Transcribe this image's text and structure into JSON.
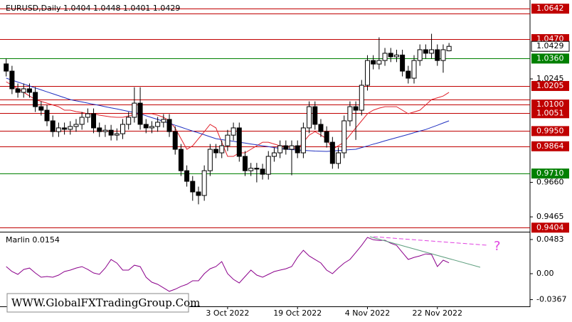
{
  "chart_data": {
    "type": "candlestick",
    "title": "EURUSD,Daily  1.0404 1.0448 1.0401 1.0429",
    "watermark": "WWW.GlobalFXTradingGroup.Com",
    "categories": [
      null,
      null,
      null,
      null,
      null,
      null,
      null,
      null,
      null,
      null,
      null,
      null,
      null,
      null,
      null,
      null,
      null,
      null,
      null,
      null,
      null,
      null,
      null,
      null,
      null,
      null,
      null,
      null,
      null,
      null,
      null,
      null,
      null,
      null,
      null,
      null,
      null,
      null,
      "3 Oct 2022",
      null,
      null,
      null,
      null,
      null,
      null,
      null,
      null,
      null,
      null,
      null,
      "19 Oct 2022",
      null,
      null,
      null,
      null,
      null,
      null,
      null,
      null,
      null,
      null,
      null,
      "4 Nov 2022",
      null,
      null,
      null,
      null,
      null,
      null,
      null,
      null,
      null,
      null,
      null,
      "22 Nov 2022",
      null,
      null
    ],
    "open": [
      1.033,
      1.0289,
      1.0189,
      1.0169,
      1.0189,
      1.0169,
      1.0088,
      1.0068,
      1.0008,
      0.9947,
      0.9968,
      0.996,
      0.9976,
      0.9988,
      1.0028,
      1.0048,
      0.9968,
      0.9947,
      0.9955,
      0.9927,
      0.9935,
      0.9988,
      1.0028,
      1.0108,
      0.9988,
      0.9968,
      0.9976,
      1.0,
      1.0016,
      0.9947,
      0.9847,
      0.9726,
      0.9666,
      0.9606,
      0.9586,
      0.9726,
      0.9847,
      0.9827,
      0.9867,
      0.9927,
      0.9968,
      0.9807,
      0.9726,
      0.974,
      0.9735,
      0.9706,
      0.9807,
      0.9827,
      0.9867,
      0.9847,
      0.9867,
      0.9827,
      0.9968,
      1.0088,
      0.9988,
      0.9947,
      0.9887,
      0.9767,
      0.9827,
      1.0008,
      1.0088,
      1.0068,
      1.0209,
      1.0349,
      1.0329,
      1.0349,
      1.039,
      1.037,
      1.038,
      1.0289,
      1.0249,
      1.0349,
      1.041,
      1.039,
      1.041,
      1.0349,
      1.0404
    ],
    "high": [
      1.036,
      1.0319,
      1.0219,
      1.0219,
      1.0219,
      1.0199,
      1.0118,
      1.0098,
      1.0038,
      0.9998,
      0.9998,
      1.0006,
      1.0018,
      1.0058,
      1.0078,
      1.0078,
      0.9998,
      0.9985,
      0.9985,
      0.9965,
      1.0018,
      1.0058,
      1.0198,
      1.0198,
      1.0018,
      1.0006,
      1.003,
      1.0046,
      1.0046,
      0.9977,
      0.9877,
      0.9756,
      0.9696,
      0.9636,
      0.9756,
      0.9877,
      0.9877,
      0.9897,
      0.9957,
      0.9998,
      0.9998,
      0.9837,
      0.977,
      0.977,
      0.9765,
      0.9837,
      0.9857,
      0.9897,
      0.9897,
      0.9897,
      0.9897,
      0.9998,
      1.0118,
      1.0118,
      1.0018,
      0.9977,
      0.9917,
      0.9857,
      1.0038,
      1.0118,
      1.0118,
      1.0239,
      1.0379,
      1.0379,
      1.048,
      1.042,
      1.042,
      1.041,
      1.041,
      1.0319,
      1.0379,
      1.044,
      1.044,
      1.05,
      1.044,
      1.044,
      1.0448
    ],
    "low": [
      1.0259,
      1.0159,
      1.0139,
      1.0139,
      1.0139,
      1.0058,
      1.0038,
      0.9978,
      0.9917,
      0.9917,
      0.993,
      0.993,
      0.9946,
      0.9958,
      0.9998,
      0.9938,
      0.9917,
      0.9917,
      0.9897,
      0.9897,
      0.9905,
      0.9958,
      0.9998,
      0.9958,
      0.9938,
      0.9938,
      0.9946,
      0.997,
      0.9917,
      0.9817,
      0.9696,
      0.9636,
      0.9556,
      0.9536,
      0.9556,
      0.9696,
      0.9797,
      0.9797,
      0.9837,
      0.9897,
      0.9777,
      0.9696,
      0.9696,
      0.966,
      0.9676,
      0.9676,
      0.9777,
      0.9797,
      0.9817,
      0.97,
      0.9797,
      0.9797,
      0.9938,
      0.9958,
      0.9917,
      0.9857,
      0.9737,
      0.9737,
      0.9797,
      0.9978,
      0.99,
      1.0038,
      1.0179,
      1.0299,
      1.0299,
      1.0319,
      1.034,
      1.034,
      1.0259,
      1.0219,
      1.0219,
      1.0319,
      1.036,
      1.036,
      1.0319,
      1.028,
      1.0401
    ],
    "close": [
      1.0289,
      1.0189,
      1.0169,
      1.0189,
      1.0169,
      1.0088,
      1.0068,
      1.0008,
      0.9947,
      0.9968,
      0.996,
      0.9976,
      0.9988,
      1.0028,
      1.0048,
      0.9968,
      0.9947,
      0.9955,
      0.9927,
      0.9935,
      0.9988,
      1.0028,
      1.0108,
      0.9988,
      0.9968,
      0.9976,
      1.0,
      1.0016,
      0.9947,
      0.9847,
      0.9726,
      0.9666,
      0.9606,
      0.9586,
      0.9726,
      0.9847,
      0.9827,
      0.9867,
      0.9927,
      0.9968,
      0.9807,
      0.9726,
      0.974,
      0.9735,
      0.9706,
      0.9807,
      0.9827,
      0.9867,
      0.9847,
      0.9867,
      0.9827,
      0.9968,
      1.0088,
      0.9988,
      0.9947,
      0.9887,
      0.9767,
      0.9827,
      1.0008,
      1.0088,
      1.0068,
      1.0209,
      1.0349,
      1.0329,
      1.0349,
      1.039,
      1.037,
      1.038,
      1.0289,
      1.0249,
      1.0349,
      1.041,
      1.039,
      1.041,
      1.0349,
      1.041,
      1.0429
    ],
    "series": [
      {
        "color": "#e0202a",
        "values": [
          1.0229,
          1.0209,
          1.0189,
          1.0169,
          1.0148,
          1.0128,
          1.0118,
          1.0108,
          1.0098,
          1.0088,
          1.0068,
          1.0068,
          1.006,
          1.0055,
          1.0048,
          1.0048,
          1.004,
          1.0035,
          1.003,
          1.0028,
          1.0028,
          1.0035,
          1.0045,
          1.0048,
          1.0048,
          1.0048,
          1.004,
          1.0028,
          1.0008,
          0.9967,
          0.9907,
          0.9847,
          0.9867,
          0.9907,
          0.9947,
          0.9988,
          0.9968,
          0.9887,
          0.9807,
          0.9807,
          0.9827,
          0.9827,
          0.9847,
          0.9867,
          0.9887,
          0.9887,
          0.9877,
          0.9867,
          0.9867,
          0.9857,
          0.9847,
          0.9887,
          0.9927,
          0.9947,
          0.9927,
          0.9907,
          0.9847,
          0.9867,
          0.9887,
          0.9927,
          0.9968,
          1.0008,
          1.0048,
          1.0068,
          1.008,
          1.0088,
          1.0088,
          1.0088,
          1.0068,
          1.0048,
          1.0058,
          1.0068,
          1.0098,
          1.0128,
          1.0138,
          1.0148,
          1.0169
        ]
      },
      {
        "color": "#2030c0",
        "values": [
          1.0249,
          1.0238,
          1.0227,
          1.0216,
          1.0205,
          1.0194,
          1.0183,
          1.0172,
          1.0161,
          1.015,
          1.0139,
          1.0128,
          1.0121,
          1.0115,
          1.0108,
          1.0101,
          1.0095,
          1.0088,
          1.0081,
          1.0075,
          1.0068,
          1.0061,
          1.0055,
          1.0048,
          1.0037,
          1.0026,
          1.0016,
          1.0005,
          0.9994,
          0.9983,
          0.9972,
          0.9961,
          0.995,
          0.994,
          0.9929,
          0.9918,
          0.9907,
          0.9902,
          0.9897,
          0.9892,
          0.9887,
          0.9882,
          0.9877,
          0.9872,
          0.9867,
          0.9862,
          0.9857,
          0.9852,
          0.9847,
          0.9845,
          0.9843,
          0.9841,
          0.9839,
          0.9837,
          0.9836,
          0.9835,
          0.9837,
          0.984,
          0.9842,
          0.9845,
          0.9847,
          0.9857,
          0.9866,
          0.9876,
          0.9885,
          0.9895,
          0.9904,
          0.9913,
          0.9922,
          0.9931,
          0.9941,
          0.995,
          0.9959,
          0.9971,
          0.9983,
          0.9996,
          1.0008
        ]
      }
    ],
    "ylim": [
      0.9385,
      1.0671
    ],
    "yticks": [
      {
        "value": 1.0245,
        "label": "1.0245"
      },
      {
        "value": 0.966,
        "label": "0.9660"
      },
      0.9465
    ],
    "current_price": 1.0429,
    "levels": [
      {
        "value": 1.0642,
        "label": "1.0642",
        "color": "#c00000"
      },
      {
        "value": 1.0613,
        "color": "#c00000"
      },
      {
        "value": 1.047,
        "label": "1.0470",
        "color": "#c00000"
      },
      {
        "value": 1.036,
        "label": "1.0360",
        "color": "#008000"
      },
      {
        "value": 1.0205,
        "label": "1.0205",
        "color": "#c00000"
      },
      {
        "value": 1.0128,
        "color": "#c00000"
      },
      {
        "value": 1.01,
        "label": "1.0100",
        "color": "#c00000"
      },
      {
        "value": 1.0051,
        "label": "1.0051",
        "color": "#c00000"
      },
      {
        "value": 0.995,
        "label": "0.9950",
        "color": "#c00000"
      },
      {
        "value": 0.9864,
        "label": "0.9864",
        "color": "#c00000"
      },
      {
        "value": 0.971,
        "label": "0.9710",
        "color": "#008000"
      },
      {
        "value": 0.9404,
        "label": "0.9404",
        "color": "#c00000"
      }
    ],
    "indicator": {
      "type": "line",
      "title": "Marlin 0.0154",
      "color": "#8b008b",
      "annotation": "?",
      "values": [
        0.0101,
        0.003,
        -0.001,
        0.006,
        0.008,
        0.001,
        -0.005,
        -0.004,
        -0.005,
        -0.002,
        0.003,
        0.005,
        0.008,
        0.01,
        0.006,
        0.001,
        -0.001,
        0.008,
        0.02,
        0.015,
        0.005,
        0.005,
        0.012,
        0.01,
        -0.005,
        -0.012,
        -0.015,
        -0.02,
        -0.025,
        -0.022,
        -0.018,
        -0.015,
        -0.01,
        -0.01,
        0.0,
        0.007,
        0.0101,
        0.0171,
        0.0,
        -0.008,
        -0.0131,
        -0.004,
        0.005,
        -0.002,
        -0.005,
        -0.001,
        0.003,
        0.005,
        0.007,
        0.0101,
        0.023,
        0.0331,
        0.025,
        0.02,
        0.0151,
        0.005,
        0.0,
        0.008,
        0.015,
        0.0201,
        0.03,
        0.04,
        0.0513,
        0.048,
        0.047,
        0.0473,
        0.043,
        0.04,
        0.03,
        0.0201,
        0.023,
        0.0251,
        0.028,
        0.0272,
        0.0101,
        0.0191,
        0.0154
      ],
      "ylim": [
        -0.0452,
        0.0553
      ],
      "yticks": [
        0.0483,
        {
          "value": 0,
          "label": "0.00"
        },
        -0.0367
      ]
    }
  }
}
